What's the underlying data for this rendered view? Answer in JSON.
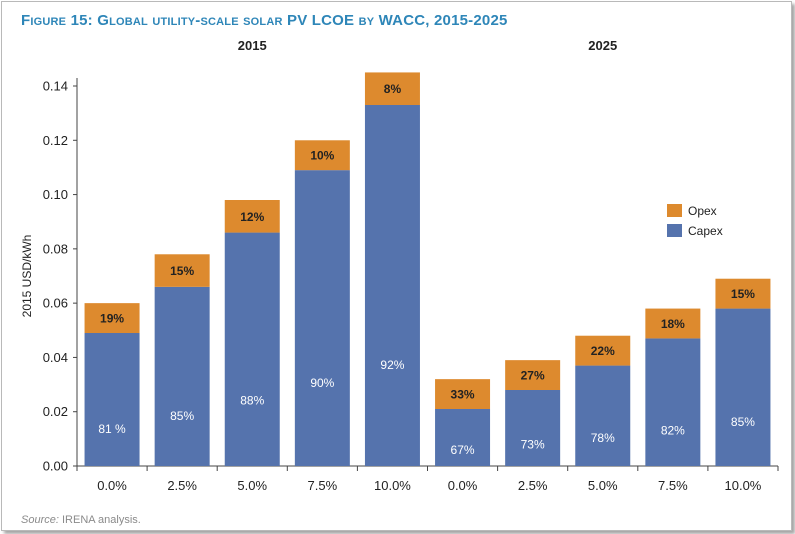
{
  "figure": {
    "title": "Figure 15: Global utility-scale solar PV LCOE by WACC, 2015-2025",
    "source_label": "Source:",
    "source_text": "IRENA analysis."
  },
  "colors": {
    "capex": "#5573ad",
    "opex": "#dd8a2e",
    "title": "#2e86b8"
  },
  "chart_data": {
    "type": "bar",
    "stacked": true,
    "title": "Figure 15: Global utility-scale solar PV LCOE by WACC, 2015-2025",
    "xlabel": "",
    "ylabel": "2015 USD/kWh",
    "ylim": [
      0,
      0.15
    ],
    "yticks": [
      "0.00",
      "0.02",
      "0.04",
      "0.06",
      "0.08",
      "0.10",
      "0.12",
      "0.14"
    ],
    "groups": [
      "2015",
      "2025"
    ],
    "categories": [
      "0.0%",
      "2.5%",
      "5.0%",
      "7.5%",
      "10.0%",
      "0.0%",
      "2.5%",
      "5.0%",
      "7.5%",
      "10.0%"
    ],
    "category_group": [
      0,
      0,
      0,
      0,
      0,
      1,
      1,
      1,
      1,
      1
    ],
    "series": [
      {
        "name": "Capex",
        "values": [
          0.049,
          0.066,
          0.086,
          0.109,
          0.133,
          0.021,
          0.028,
          0.037,
          0.047,
          0.058
        ],
        "labels": [
          "81 %",
          "85%",
          "88%",
          "90%",
          "92%",
          "67%",
          "73%",
          "78%",
          "82%",
          "85%"
        ]
      },
      {
        "name": "Opex",
        "values": [
          0.011,
          0.012,
          0.012,
          0.011,
          0.012,
          0.011,
          0.011,
          0.011,
          0.011,
          0.011
        ],
        "labels": [
          "19%",
          "15%",
          "12%",
          "10%",
          "8%",
          "33%",
          "27%",
          "22%",
          "18%",
          "15%"
        ]
      }
    ],
    "legend": [
      "Opex",
      "Capex"
    ],
    "legend_position": "right",
    "grid": false
  }
}
